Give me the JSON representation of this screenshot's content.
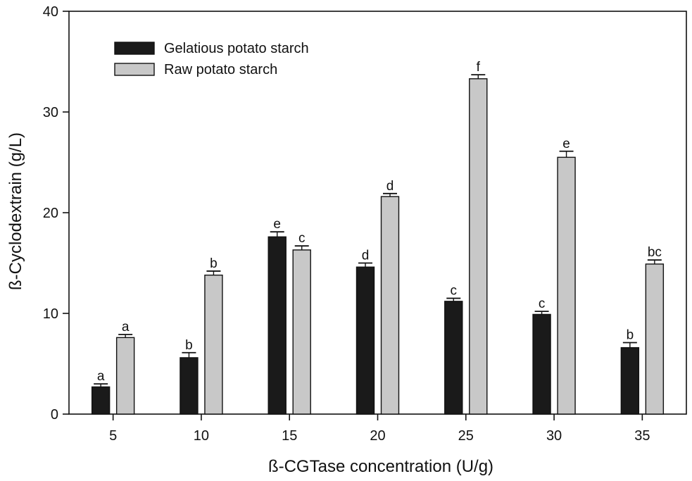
{
  "chart_data": {
    "type": "bar",
    "title": "",
    "xlabel": "ß-CGTase  concentration (U/g)",
    "ylabel": "ß-Cyclodextrain  (g/L)",
    "ylim": [
      0,
      40
    ],
    "yticks": [
      0,
      10,
      20,
      30,
      40
    ],
    "categories": [
      "5",
      "10",
      "15",
      "20",
      "25",
      "30",
      "35"
    ],
    "legend_position": "top-left",
    "series": [
      {
        "name": "Gelatious potato starch",
        "color": "#1a1a1a",
        "values": [
          2.7,
          5.6,
          17.6,
          14.6,
          11.2,
          9.9,
          6.6
        ],
        "errors": [
          0.3,
          0.5,
          0.5,
          0.4,
          0.3,
          0.3,
          0.5
        ],
        "letters": [
          "a",
          "b",
          "e",
          "d",
          "c",
          "c",
          "b"
        ]
      },
      {
        "name": "Raw potato starch",
        "color": "#c8c8c8",
        "values": [
          7.6,
          13.8,
          16.3,
          21.6,
          33.3,
          25.5,
          14.9
        ],
        "errors": [
          0.3,
          0.4,
          0.4,
          0.3,
          0.4,
          0.6,
          0.4
        ],
        "letters": [
          "a",
          "b",
          "c",
          "d",
          "f",
          "e",
          "bc"
        ]
      }
    ]
  }
}
